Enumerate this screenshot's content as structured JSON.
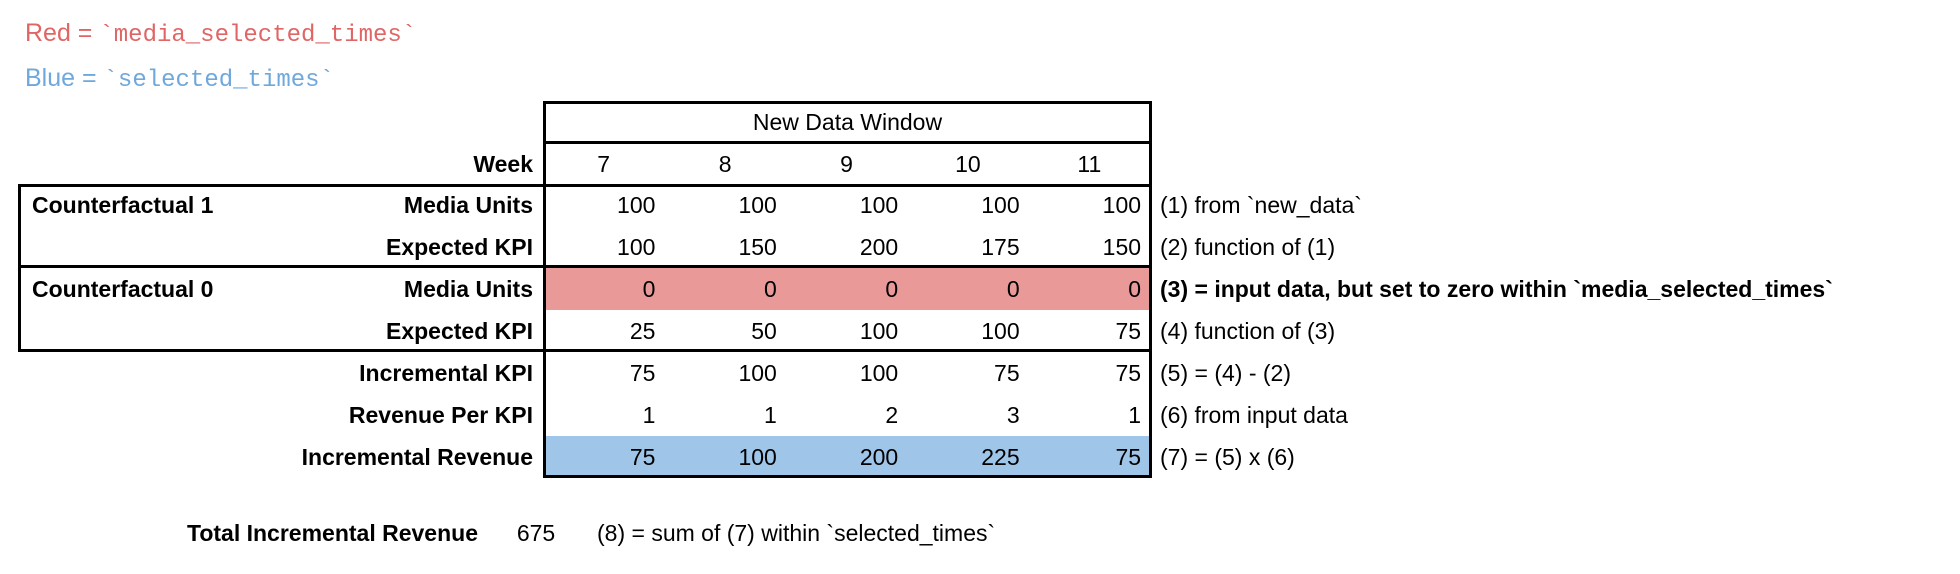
{
  "colors": {
    "red_fill": "#ea9999",
    "blue_fill": "#9fc5e8",
    "red_text": "#e06666",
    "blue_text": "#6fa8dc",
    "border": "#000000"
  },
  "legend": {
    "red_label": "Red = ",
    "red_code": "`media_selected_times`",
    "blue_label": "Blue = ",
    "blue_code": "`selected_times`"
  },
  "table": {
    "header": "New Data Window",
    "week_label": "Week",
    "weeks": [
      "7",
      "8",
      "9",
      "10",
      "11"
    ],
    "rows": [
      {
        "group": "Counterfactual 1",
        "label": "Media Units",
        "values": [
          "100",
          "100",
          "100",
          "100",
          "100"
        ],
        "note": "(1) from `new_data`"
      },
      {
        "group": "",
        "label": "Expected KPI",
        "values": [
          "100",
          "150",
          "200",
          "175",
          "150"
        ],
        "note": "(2) function of (1)"
      },
      {
        "group": "Counterfactual 0",
        "label": "Media Units",
        "values": [
          "0",
          "0",
          "0",
          "0",
          "0"
        ],
        "note": "(3) = input data, but set to zero within `media_selected_times`"
      },
      {
        "group": "",
        "label": "Expected KPI",
        "values": [
          "25",
          "50",
          "100",
          "100",
          "75"
        ],
        "note": "(4) function of (3)"
      },
      {
        "group": "",
        "label": "Incremental KPI",
        "values": [
          "75",
          "100",
          "100",
          "75",
          "75"
        ],
        "note": "(5) = (4) - (2)"
      },
      {
        "group": "",
        "label": "Revenue Per KPI",
        "values": [
          "1",
          "1",
          "2",
          "3",
          "1"
        ],
        "note": "(6) from input data"
      },
      {
        "group": "",
        "label": "Incremental Revenue",
        "values": [
          "75",
          "100",
          "200",
          "225",
          "75"
        ],
        "note": "(7) = (5) x (6)"
      }
    ]
  },
  "footer": {
    "label": "Total Incremental Revenue",
    "value": "675",
    "note": "(8) = sum of (7) within `selected_times`"
  }
}
